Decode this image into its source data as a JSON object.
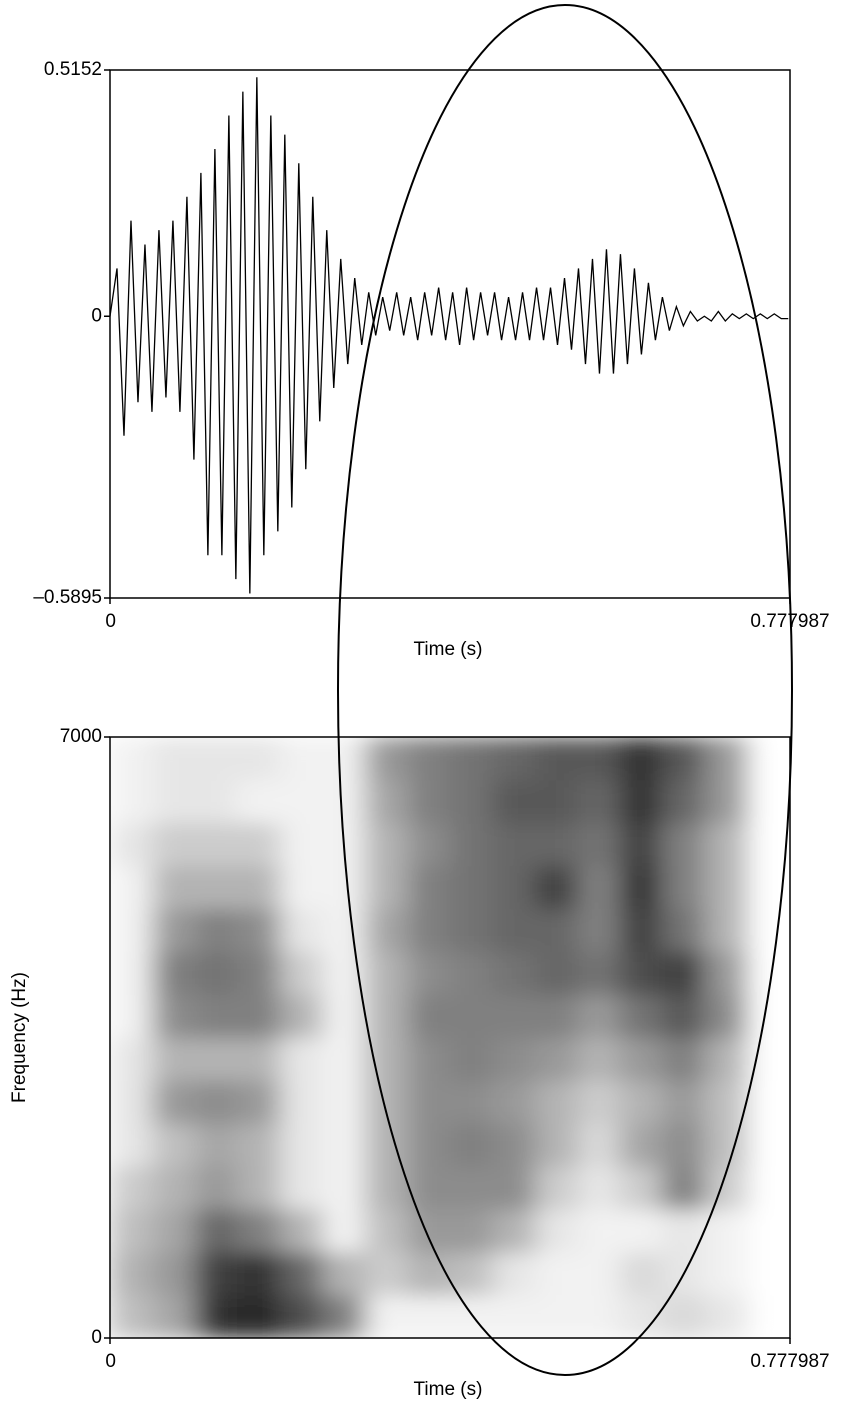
{
  "chart_data": [
    {
      "type": "line",
      "color": "#000000",
      "xlabel": "Time (s)",
      "xlim": [
        0,
        0.777987
      ],
      "ylim": [
        -0.5895,
        0.5152
      ],
      "xticks": [
        0,
        0.777987
      ],
      "yticks": [
        {
          "value": -0.5895,
          "label": "–0.5895"
        },
        0,
        0.5152
      ],
      "x": [
        0,
        0.008,
        0.016,
        0.024,
        0.032,
        0.04,
        0.048,
        0.056,
        0.064,
        0.072,
        0.08,
        0.088,
        0.096,
        0.104,
        0.112,
        0.12,
        0.128,
        0.136,
        0.144,
        0.152,
        0.16,
        0.168,
        0.176,
        0.184,
        0.192,
        0.2,
        0.208,
        0.216,
        0.224,
        0.232,
        0.24,
        0.248,
        0.256,
        0.264,
        0.272,
        0.28,
        0.288,
        0.296,
        0.304,
        0.312,
        0.32,
        0.328,
        0.336,
        0.344,
        0.352,
        0.36,
        0.368,
        0.376,
        0.384,
        0.392,
        0.4,
        0.408,
        0.416,
        0.424,
        0.432,
        0.44,
        0.448,
        0.456,
        0.464,
        0.472,
        0.48,
        0.488,
        0.496,
        0.504,
        0.512,
        0.52,
        0.528,
        0.536,
        0.544,
        0.552,
        0.56,
        0.568,
        0.576,
        0.584,
        0.592,
        0.6,
        0.608,
        0.616,
        0.624,
        0.632,
        0.64,
        0.648,
        0.656,
        0.664,
        0.672,
        0.68,
        0.688,
        0.696,
        0.704,
        0.712,
        0.72,
        0.728,
        0.736,
        0.744,
        0.752,
        0.76,
        0.768,
        0.776
      ],
      "values": [
        0,
        0.1,
        -0.25,
        0.2,
        -0.18,
        0.15,
        -0.2,
        0.18,
        -0.17,
        0.2,
        -0.2,
        0.25,
        -0.3,
        0.3,
        -0.5,
        0.35,
        -0.5,
        0.42,
        -0.55,
        0.47,
        -0.58,
        0.5,
        -0.5,
        0.42,
        -0.45,
        0.38,
        -0.4,
        0.32,
        -0.32,
        0.25,
        -0.22,
        0.18,
        -0.15,
        0.12,
        -0.1,
        0.08,
        -0.06,
        0.05,
        -0.04,
        0.04,
        -0.03,
        0.05,
        -0.04,
        0.04,
        -0.05,
        0.05,
        -0.04,
        0.06,
        -0.05,
        0.05,
        -0.06,
        0.06,
        -0.05,
        0.05,
        -0.04,
        0.05,
        -0.05,
        0.04,
        -0.05,
        0.05,
        -0.05,
        0.06,
        -0.05,
        0.06,
        -0.06,
        0.08,
        -0.07,
        0.1,
        -0.1,
        0.12,
        -0.12,
        0.14,
        -0.12,
        0.13,
        -0.1,
        0.1,
        -0.08,
        0.07,
        -0.05,
        0.04,
        -0.03,
        0.02,
        -0.02,
        0.01,
        -0.01,
        0,
        -0.01,
        0.01,
        -0.01,
        0.005,
        -0.005,
        0.005,
        -0.005,
        0.005,
        -0.005,
        0.005,
        -0.005,
        -0.005
      ]
    },
    {
      "type": "heatmap",
      "xlabel": "Time (s)",
      "ylabel": "Frequency (Hz)",
      "xlim": [
        0,
        0.777987
      ],
      "ylim": [
        0,
        7000
      ],
      "xticks": [
        0,
        0.777987
      ],
      "yticks": [
        0,
        7000
      ],
      "x": [
        0.024,
        0.073,
        0.122,
        0.17,
        0.219,
        0.267,
        0.316,
        0.365,
        0.413,
        0.462,
        0.511,
        0.559,
        0.608,
        0.656,
        0.705,
        0.754
      ],
      "y": [
        250,
        750,
        1250,
        1750,
        2250,
        2750,
        3250,
        3750,
        4250,
        4750,
        5250,
        5750,
        6250,
        6750
      ],
      "values": [
        [
          0.25,
          0.3,
          0.25,
          0.2,
          0.1,
          0.1,
          0.1,
          0.05,
          0.05,
          0.05,
          0.05,
          0.1,
          0.05,
          0.05
        ],
        [
          0.35,
          0.4,
          0.35,
          0.3,
          0.25,
          0.4,
          0.3,
          0.45,
          0.5,
          0.4,
          0.3,
          0.2,
          0.1,
          0.1
        ],
        [
          0.8,
          0.75,
          0.6,
          0.4,
          0.35,
          0.45,
          0.3,
          0.5,
          0.55,
          0.5,
          0.3,
          0.2,
          0.1,
          0.1
        ],
        [
          0.85,
          0.8,
          0.5,
          0.3,
          0.3,
          0.4,
          0.3,
          0.5,
          0.5,
          0.45,
          0.3,
          0.2,
          0.05,
          0.1
        ],
        [
          0.7,
          0.6,
          0.3,
          0.1,
          0.1,
          0.1,
          0.1,
          0.3,
          0.2,
          0.1,
          0.05,
          0.05,
          0.05,
          0.05
        ],
        [
          0.5,
          0.3,
          0.05,
          0.05,
          0.05,
          0.05,
          0.05,
          0.05,
          0.05,
          0.05,
          0.05,
          0.05,
          0.05,
          0.05
        ],
        [
          0.05,
          0.2,
          0.25,
          0.3,
          0.3,
          0.3,
          0.3,
          0.3,
          0.3,
          0.35,
          0.3,
          0.3,
          0.35,
          0.4
        ],
        [
          0.05,
          0.3,
          0.4,
          0.45,
          0.45,
          0.45,
          0.45,
          0.5,
          0.45,
          0.5,
          0.5,
          0.45,
          0.5,
          0.5
        ],
        [
          0.05,
          0.25,
          0.4,
          0.45,
          0.5,
          0.45,
          0.5,
          0.5,
          0.5,
          0.55,
          0.55,
          0.55,
          0.55,
          0.55
        ],
        [
          0.05,
          0.1,
          0.3,
          0.45,
          0.45,
          0.4,
          0.45,
          0.5,
          0.55,
          0.6,
          0.6,
          0.6,
          0.65,
          0.6
        ],
        [
          0.05,
          0.05,
          0.1,
          0.2,
          0.3,
          0.3,
          0.4,
          0.5,
          0.6,
          0.6,
          0.75,
          0.6,
          0.65,
          0.65
        ],
        [
          0.05,
          0.05,
          0.05,
          0.1,
          0.15,
          0.2,
          0.3,
          0.4,
          0.55,
          0.5,
          0.5,
          0.55,
          0.6,
          0.65
        ],
        [
          0.1,
          0.15,
          0.05,
          0.2,
          0.35,
          0.3,
          0.4,
          0.55,
          0.7,
          0.75,
          0.8,
          0.75,
          0.8,
          0.8
        ],
        [
          0.15,
          0.1,
          0.1,
          0.5,
          0.45,
          0.4,
          0.5,
          0.65,
          0.75,
          0.55,
          0.5,
          0.5,
          0.6,
          0.65
        ],
        [
          0.1,
          0.05,
          0.05,
          0.2,
          0.25,
          0.25,
          0.3,
          0.45,
          0.4,
          0.3,
          0.3,
          0.3,
          0.4,
          0.4
        ],
        [
          0,
          0,
          0,
          0,
          0,
          0,
          0,
          0,
          0,
          0,
          0,
          0,
          0,
          0
        ]
      ]
    }
  ]
}
